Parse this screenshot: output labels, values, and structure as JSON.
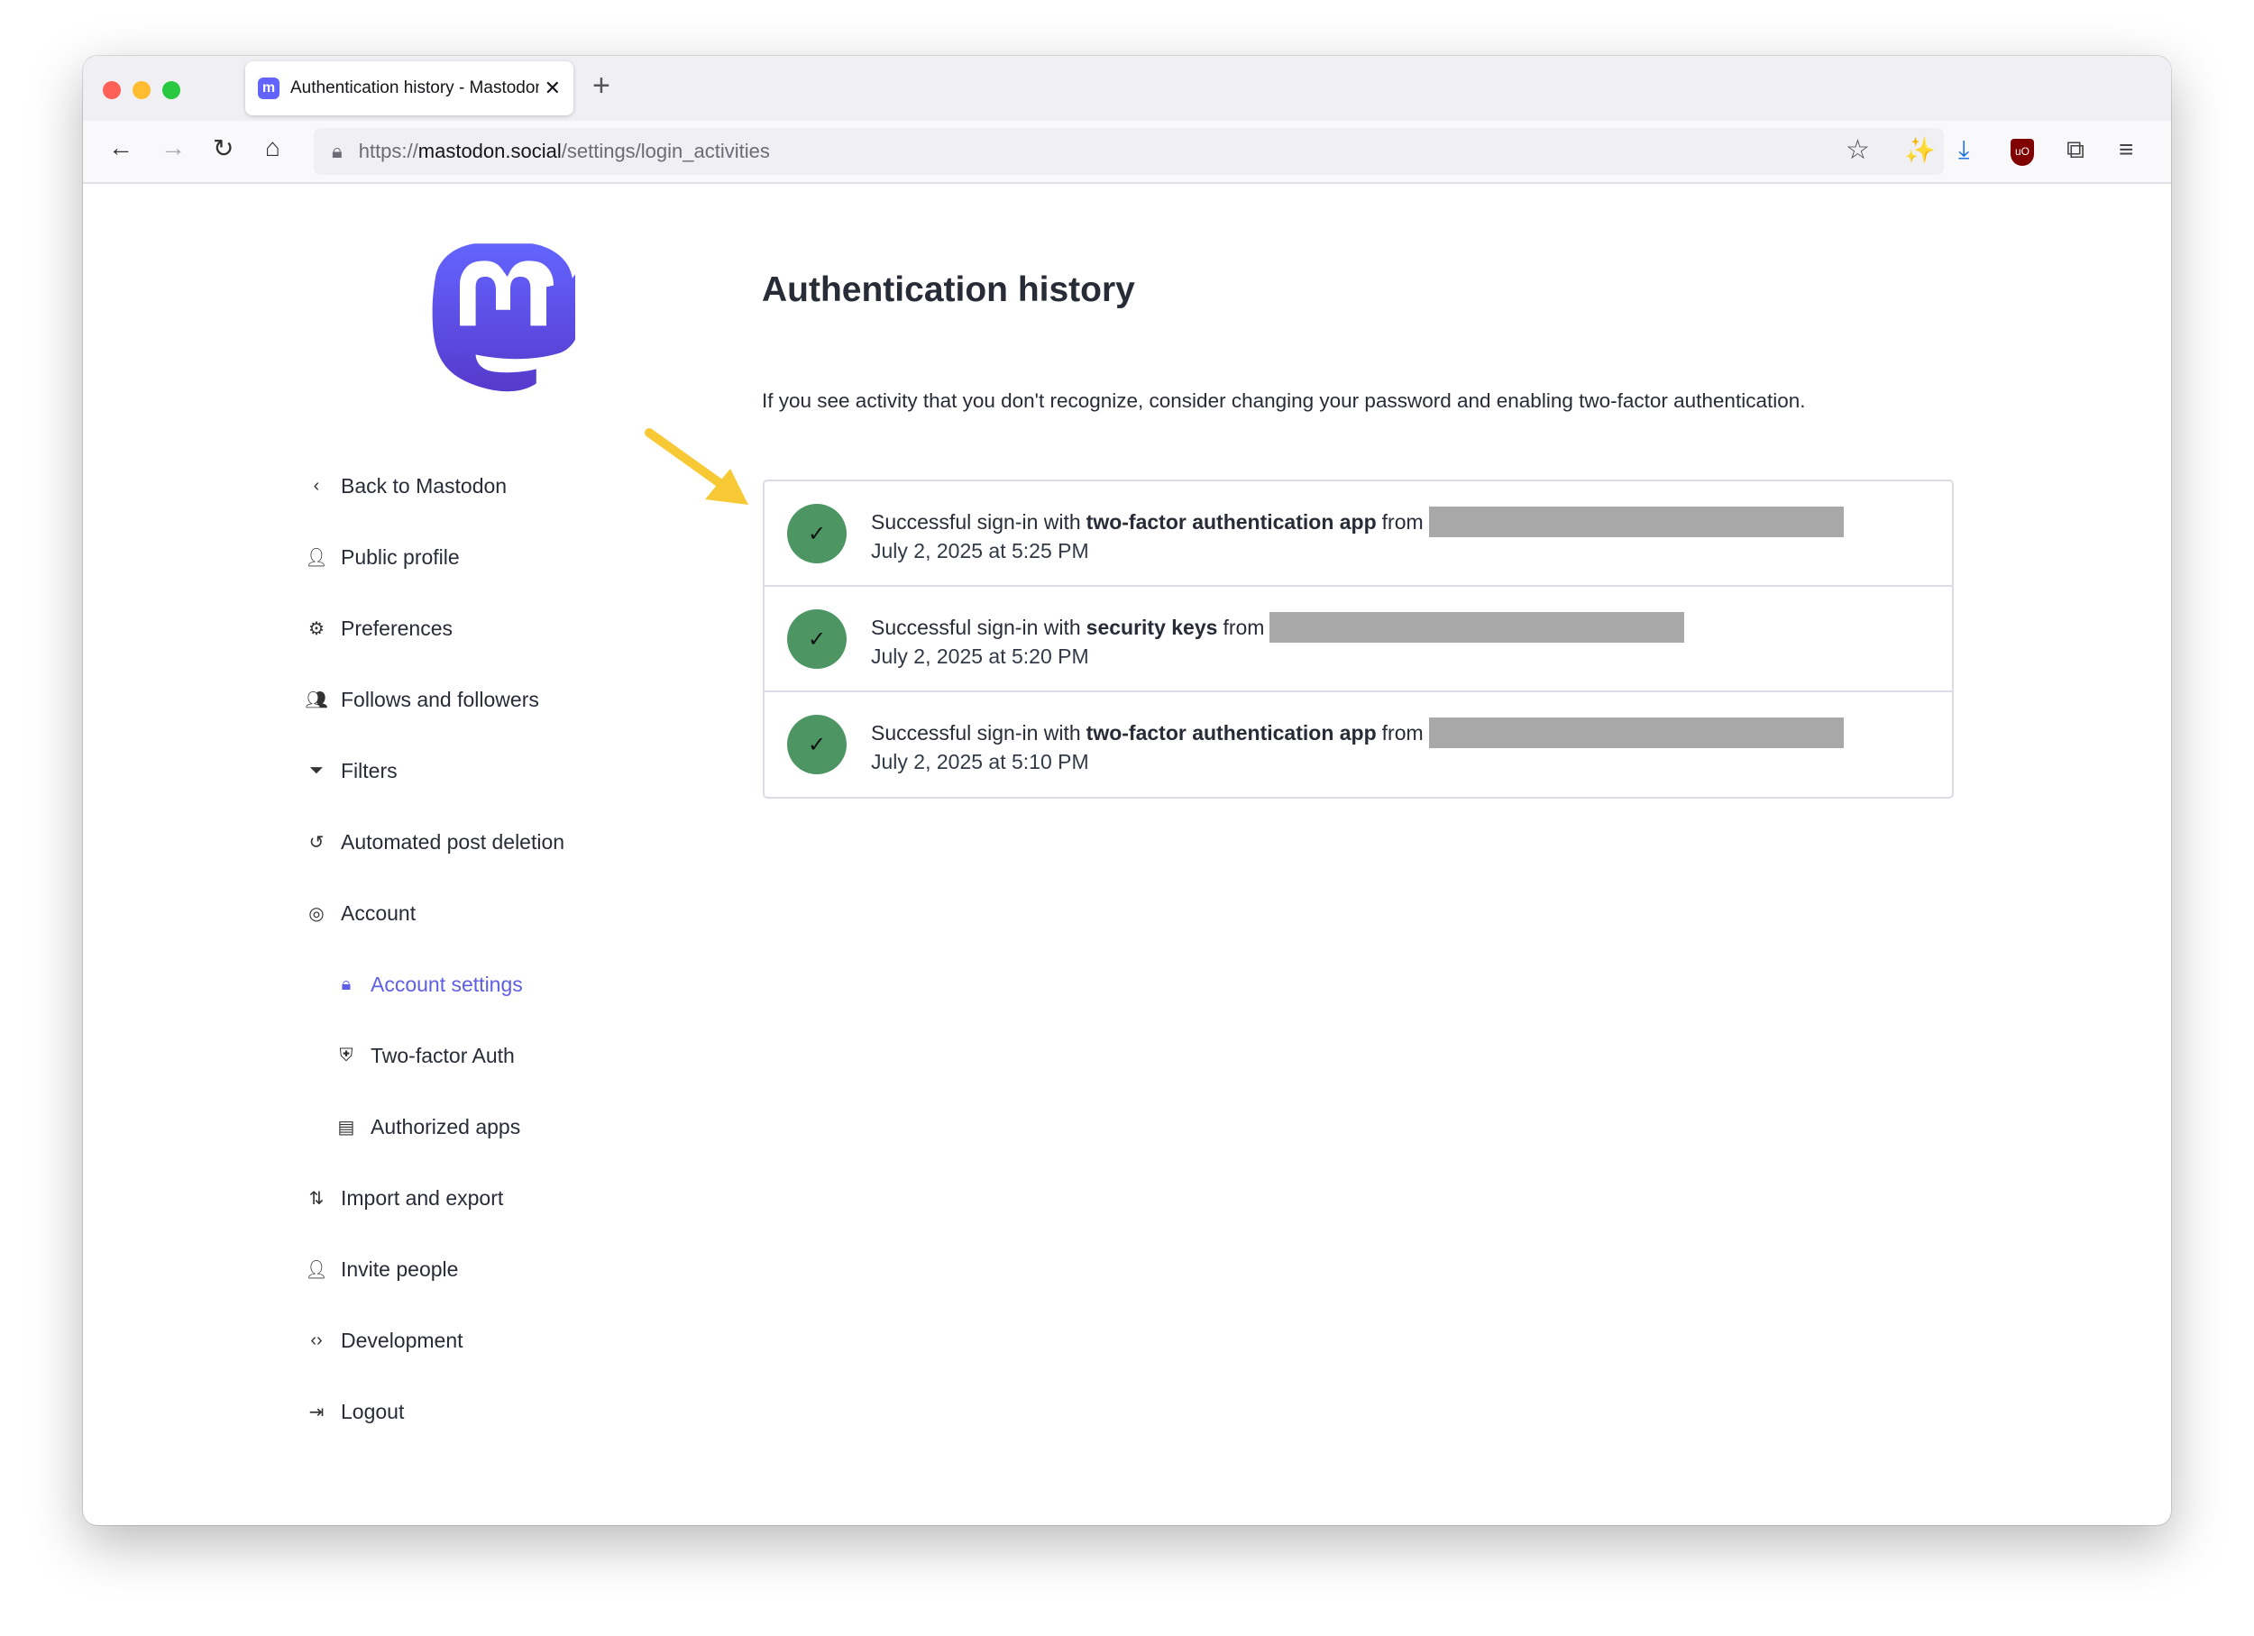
{
  "browser": {
    "tab_title": "Authentication history - Mastodon",
    "url_scheme": "https://",
    "url_domain": "mastodon.social",
    "url_path": "/settings/login_activities"
  },
  "colors": {
    "accent": "#5e5fe5",
    "success": "#4d9663",
    "arrow": "#f7c934"
  },
  "sidebar": {
    "items": [
      {
        "label": "Back to Mastodon",
        "icon": "chevron-left-icon"
      },
      {
        "label": "Public profile",
        "icon": "person-icon"
      },
      {
        "label": "Preferences",
        "icon": "gear-icon"
      },
      {
        "label": "Follows and followers",
        "icon": "users-icon"
      },
      {
        "label": "Filters",
        "icon": "filter-icon"
      },
      {
        "label": "Automated post deletion",
        "icon": "history-icon"
      },
      {
        "label": "Account",
        "icon": "user-circle-icon"
      },
      {
        "label": "Account settings",
        "icon": "lock-icon",
        "active": true,
        "sub": true
      },
      {
        "label": "Two-factor Auth",
        "icon": "shield-icon",
        "sub": true
      },
      {
        "label": "Authorized apps",
        "icon": "list-icon",
        "sub": true
      },
      {
        "label": "Import and export",
        "icon": "import-export-icon"
      },
      {
        "label": "Invite people",
        "icon": "user-plus-icon"
      },
      {
        "label": "Development",
        "icon": "code-icon"
      },
      {
        "label": "Logout",
        "icon": "logout-icon"
      }
    ]
  },
  "main": {
    "title": "Authentication history",
    "description": "If you see activity that you don't recognize, consider changing your password and enabling two-factor authentication.",
    "activities": [
      {
        "prefix": "Successful sign-in with",
        "method": "two-factor authentication app",
        "suffix": "from",
        "time": "July 2, 2025 at 5:25 PM"
      },
      {
        "prefix": "Successful sign-in with",
        "method": "security keys",
        "suffix": "from",
        "time": "July 2, 2025 at 5:20 PM"
      },
      {
        "prefix": "Successful sign-in with",
        "method": "two-factor authentication app",
        "suffix": "from",
        "time": "July 2, 2025 at 5:10 PM"
      }
    ]
  }
}
